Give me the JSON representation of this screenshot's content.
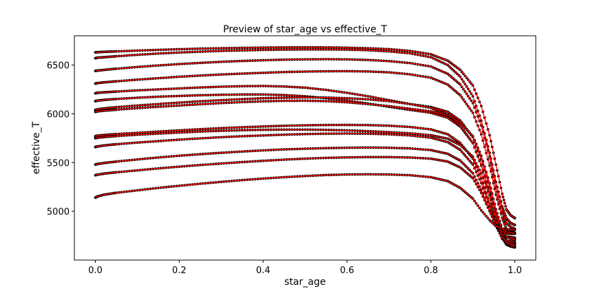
{
  "chart_data": {
    "type": "line",
    "title": "Preview of star_age vs effective_T",
    "xlabel": "star_age",
    "ylabel": "effective_T",
    "xlim": [
      -0.05,
      1.05
    ],
    "ylim": [
      4500,
      6800
    ],
    "xticks": [
      "0.0",
      "0.2",
      "0.4",
      "0.6",
      "0.8",
      "1.0"
    ],
    "yticks": [
      "5000",
      "5500",
      "6000",
      "6500"
    ],
    "xtick_values": [
      0.0,
      0.2,
      0.4,
      0.6,
      0.8,
      1.0
    ],
    "ytick_values": [
      5000,
      5500,
      6000,
      6500
    ],
    "grid": false,
    "legend": "none",
    "line_color": "#ff0000",
    "marker_color": "#000000",
    "x": [
      0.0,
      0.005,
      0.02,
      0.05,
      0.1,
      0.15,
      0.2,
      0.25,
      0.3,
      0.35,
      0.4,
      0.45,
      0.5,
      0.55,
      0.6,
      0.65,
      0.7,
      0.75,
      0.8,
      0.84,
      0.87,
      0.9,
      0.92,
      0.94,
      0.955,
      0.97,
      0.98,
      0.99,
      1.0
    ],
    "series": [
      {
        "values": [
          6630,
          6632,
          6635,
          6640,
          6648,
          6655,
          6662,
          6668,
          6672,
          6676,
          6679,
          6681,
          6682,
          6681,
          6678,
          6672,
          6663,
          6645,
          6610,
          6545,
          6450,
          6290,
          6080,
          5780,
          5480,
          5180,
          5020,
          4960,
          4930
        ]
      },
      {
        "values": [
          6570,
          6575,
          6580,
          6590,
          6605,
          6618,
          6628,
          6637,
          6645,
          6650,
          6655,
          6658,
          6660,
          6660,
          6658,
          6652,
          6640,
          6620,
          6580,
          6500,
          6380,
          6180,
          5930,
          5600,
          5300,
          5050,
          4930,
          4880,
          4860
        ]
      },
      {
        "values": [
          6440,
          6443,
          6450,
          6462,
          6480,
          6496,
          6510,
          6522,
          6533,
          6542,
          6549,
          6555,
          6558,
          6560,
          6558,
          6552,
          6540,
          6520,
          6485,
          6410,
          6300,
          6110,
          5880,
          5560,
          5250,
          5000,
          4880,
          4840,
          4820
        ]
      },
      {
        "values": [
          6310,
          6315,
          6322,
          6333,
          6350,
          6365,
          6380,
          6392,
          6403,
          6412,
          6420,
          6428,
          6433,
          6436,
          6437,
          6434,
          6425,
          6405,
          6370,
          6300,
          6190,
          6010,
          5790,
          5470,
          5170,
          4930,
          4820,
          4790,
          4780
        ]
      },
      {
        "values": [
          6210,
          6215,
          6220,
          6228,
          6240,
          6250,
          6260,
          6270,
          6278,
          6283,
          6285,
          6280,
          6268,
          6245,
          6215,
          6180,
          6140,
          6100,
          6070,
          6020,
          5930,
          5760,
          5540,
          5250,
          4980,
          4780,
          4700,
          4680,
          4670
        ]
      },
      {
        "values": [
          6130,
          6135,
          6142,
          6152,
          6165,
          6175,
          6183,
          6190,
          6195,
          6198,
          6198,
          6192,
          6180,
          6160,
          6135,
          6105,
          6072,
          6040,
          6010,
          5960,
          5870,
          5700,
          5480,
          5190,
          4920,
          4730,
          4660,
          4640,
          4630
        ]
      },
      {
        "values": [
          6040,
          6045,
          6055,
          6068,
          6085,
          6100,
          6115,
          6128,
          6140,
          6150,
          6160,
          6165,
          6168,
          6167,
          6160,
          6148,
          6130,
          6100,
          6060,
          5990,
          5880,
          5700,
          5470,
          5170,
          4900,
          4730,
          4670,
          4650,
          4640
        ]
      },
      {
        "values": [
          5770,
          5775,
          5782,
          5792,
          5805,
          5818,
          5830,
          5842,
          5853,
          5862,
          5870,
          5877,
          5882,
          5885,
          5886,
          5884,
          5878,
          5865,
          5840,
          5790,
          5700,
          5540,
          5340,
          5080,
          4860,
          4720,
          4680,
          4665,
          4660
        ]
      },
      {
        "values": [
          5660,
          5665,
          5675,
          5688,
          5705,
          5720,
          5735,
          5748,
          5760,
          5770,
          5778,
          5786,
          5792,
          5796,
          5798,
          5796,
          5790,
          5778,
          5755,
          5710,
          5630,
          5480,
          5290,
          5050,
          4850,
          4730,
          4700,
          4690,
          4685
        ]
      },
      {
        "values": [
          5480,
          5485,
          5495,
          5510,
          5532,
          5552,
          5570,
          5586,
          5600,
          5613,
          5625,
          5635,
          5642,
          5648,
          5652,
          5654,
          5652,
          5645,
          5628,
          5590,
          5520,
          5390,
          5220,
          5010,
          4850,
          4760,
          4740,
          4735,
          4730
        ]
      },
      {
        "values": [
          5370,
          5376,
          5386,
          5400,
          5420,
          5440,
          5458,
          5475,
          5490,
          5505,
          5518,
          5530,
          5540,
          5548,
          5553,
          5556,
          5556,
          5552,
          5540,
          5510,
          5450,
          5340,
          5190,
          5000,
          4860,
          4790,
          4775,
          4770,
          4770
        ]
      },
      {
        "values": [
          5140,
          5152,
          5170,
          5190,
          5215,
          5240,
          5262,
          5283,
          5302,
          5320,
          5336,
          5350,
          5362,
          5372,
          5378,
          5380,
          5378,
          5370,
          5350,
          5310,
          5240,
          5130,
          5010,
          4910,
          4850,
          4820,
          4815,
          4810,
          4810
        ]
      },
      {
        "values": [
          6020,
          6025,
          6032,
          6042,
          6058,
          6072,
          6085,
          6098,
          6110,
          6120,
          6128,
          6133,
          6134,
          6130,
          6118,
          6100,
          6078,
          6052,
          6025,
          5985,
          5910,
          5770,
          5570,
          5290,
          5020,
          4820,
          4740,
          4720,
          4710
        ]
      },
      {
        "values": [
          5750,
          5755,
          5762,
          5772,
          5785,
          5797,
          5808,
          5818,
          5826,
          5832,
          5836,
          5838,
          5838,
          5835,
          5830,
          5822,
          5812,
          5800,
          5780,
          5745,
          5680,
          5560,
          5390,
          5160,
          4950,
          4820,
          4790,
          4780,
          4775
        ]
      }
    ]
  }
}
